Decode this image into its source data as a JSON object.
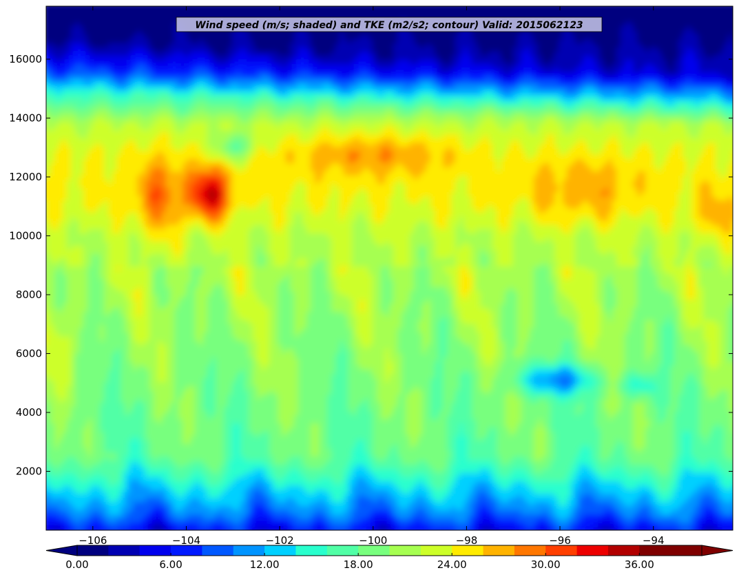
{
  "chart_data": {
    "type": "heatmap",
    "title": "Wind speed (m/s; shaded) and TKE (m2/s2; contour) Valid: 2015062123",
    "xlabel": "",
    "ylabel": "",
    "xlim": [
      -107.0,
      -92.3
    ],
    "ylim": [
      0,
      17800
    ],
    "x_ticks": [
      -106,
      -104,
      -102,
      -100,
      -98,
      -96,
      -94
    ],
    "x_tick_labels": [
      "−106",
      "−104",
      "−102",
      "−100",
      "−98",
      "−96",
      "−94"
    ],
    "y_ticks": [
      2000,
      4000,
      6000,
      8000,
      10000,
      12000,
      14000,
      16000
    ],
    "y_tick_labels": [
      "2000",
      "4000",
      "6000",
      "8000",
      "10000",
      "12000",
      "14000",
      "16000"
    ],
    "colorbar": {
      "levels": [
        0,
        2,
        4,
        6,
        8,
        10,
        12,
        14,
        16,
        18,
        20,
        22,
        24,
        26,
        28,
        30,
        32,
        34,
        36,
        38,
        40
      ],
      "colors": [
        "#00007f",
        "#0000b2",
        "#0000ed",
        "#0019ff",
        "#0058ff",
        "#0094ff",
        "#00d0ff",
        "#29ffcd",
        "#51ffa6",
        "#78ff7e",
        "#a6ff51",
        "#cdff29",
        "#ffeb00",
        "#ffb300",
        "#ff7700",
        "#ff3f00",
        "#ed0000",
        "#b20000",
        "#7f0000",
        "#7f0000"
      ],
      "under_color": "#00007f",
      "over_color": "#7f0000",
      "tick_values": [
        0,
        6,
        12,
        18,
        24,
        30,
        36
      ],
      "tick_labels": [
        "0.00",
        "6.00",
        "12.00",
        "18.00",
        "24.00",
        "30.00",
        "36.00"
      ]
    },
    "field_description": {
      "lower_boundary_layer_0_2000": [
        6,
        14
      ],
      "midlevel_2000_10000": [
        18,
        24
      ],
      "jet_level_10000_14000": [
        22,
        28
      ],
      "jet_maximum": {
        "x": -103.5,
        "y": 11400,
        "value": 33
      },
      "upper_14000_17800": [
        4,
        14
      ]
    }
  }
}
